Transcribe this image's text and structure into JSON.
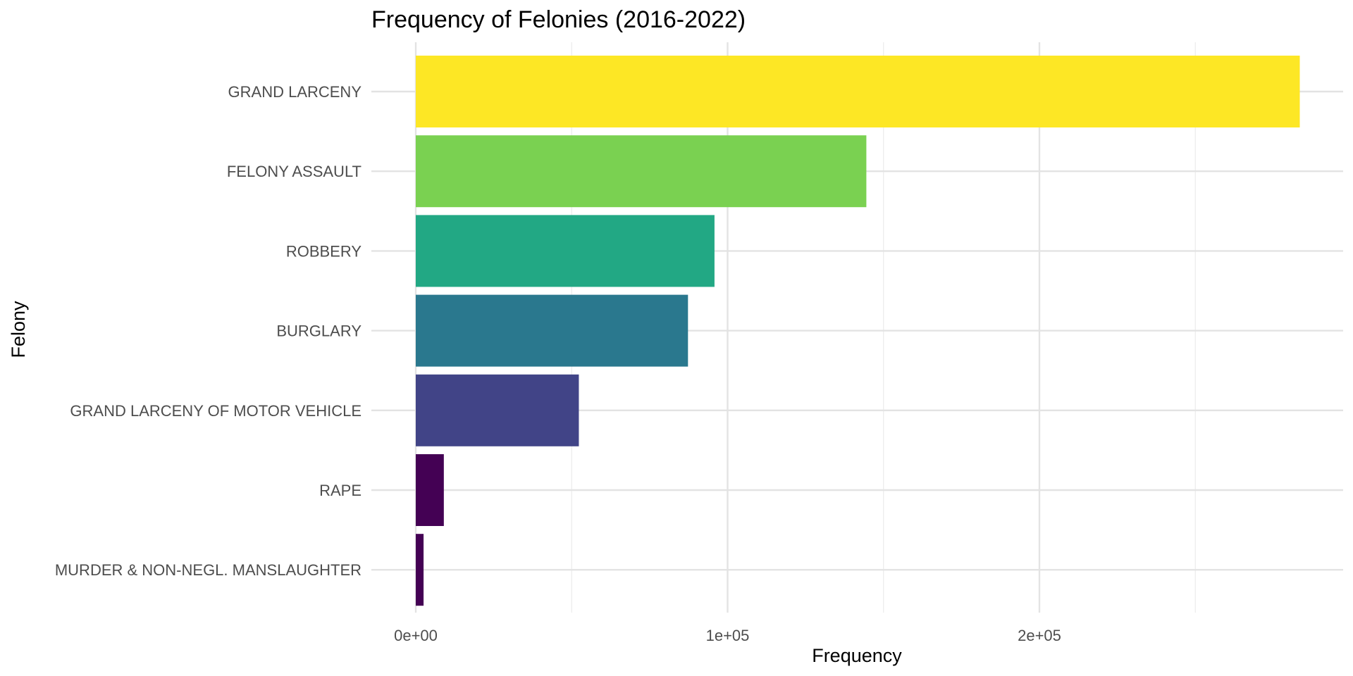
{
  "chart_data": {
    "type": "bar",
    "orientation": "horizontal",
    "title": "Frequency of Felonies (2016-2022)",
    "xlabel": "Frequency",
    "ylabel": "Felony",
    "categories": [
      "GRAND LARCENY",
      "FELONY ASSAULT",
      "ROBBERY",
      "BURGLARY",
      "GRAND LARCENY OF MOTOR VEHICLE",
      "RAPE",
      "MURDER & NON-NEGL. MANSLAUGHTER"
    ],
    "values": [
      283500,
      144500,
      95800,
      87300,
      52300,
      9000,
      2500
    ],
    "colors": [
      "#FDE725",
      "#7AD151",
      "#22A884",
      "#2A788E",
      "#414487",
      "#440154",
      "#440154"
    ],
    "xlim": [
      -7000,
      298000
    ],
    "xticks": [
      0,
      100000,
      200000
    ],
    "xtick_labels": [
      "0e+00",
      "1e+05",
      "2e+05"
    ],
    "grid": true,
    "legend": "none"
  }
}
